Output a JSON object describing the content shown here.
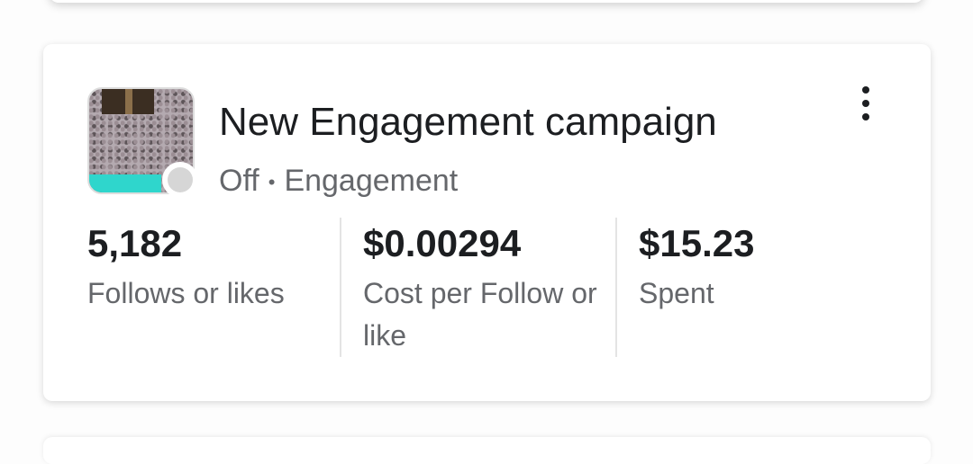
{
  "campaign": {
    "title": "New Engagement campaign",
    "status": "Off",
    "separator": "•",
    "objective": "Engagement",
    "status_color": "#d6d6d6",
    "stats": [
      {
        "value": "5,182",
        "label": "Follows or likes"
      },
      {
        "value": "$0.00294",
        "label": "Cost per Follow or like"
      },
      {
        "value": "$15.23",
        "label": "Spent"
      }
    ]
  }
}
